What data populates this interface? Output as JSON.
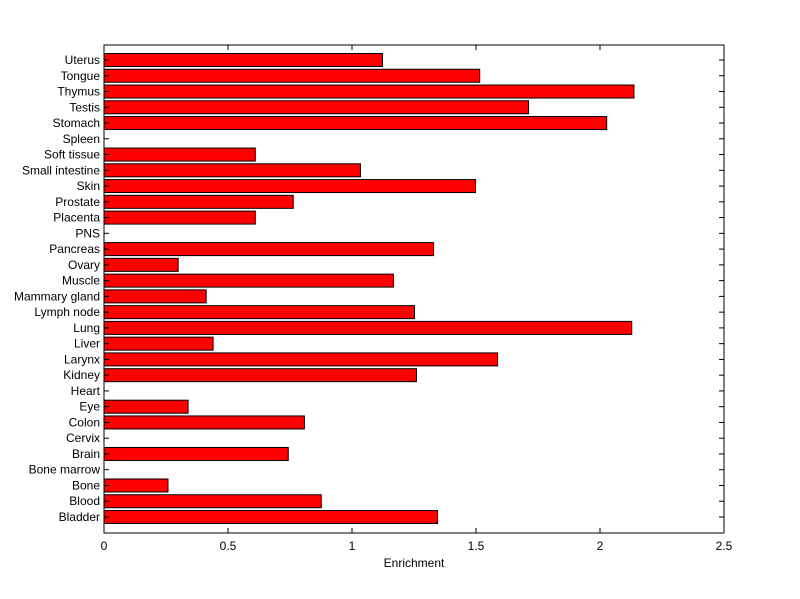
{
  "chart_data": {
    "type": "bar",
    "orientation": "horizontal",
    "title": "",
    "xlabel": "Enrichment",
    "ylabel": "",
    "xlim": [
      0,
      2.5
    ],
    "xticks": [
      "0",
      "0.5",
      "1",
      "1.5",
      "2",
      "2.5"
    ],
    "bar_color": "#ff0000",
    "categories": [
      "Bladder",
      "Blood",
      "Bone",
      "Bone marrow",
      "Brain",
      "Cervix",
      "Colon",
      "Eye",
      "Heart",
      "Kidney",
      "Larynx",
      "Liver",
      "Lung",
      "Lymph node",
      "Mammary gland",
      "Muscle",
      "Ovary",
      "Pancreas",
      "PNS",
      "Placenta",
      "Prostate",
      "Skin",
      "Small intestine",
      "Soft tissue",
      "Spleen",
      "Stomach",
      "Testis",
      "Thymus",
      "Tongue",
      "Uterus"
    ],
    "values": [
      1.345,
      0.876,
      0.258,
      0,
      0.743,
      0,
      0.808,
      0.339,
      0,
      1.26,
      1.587,
      0.44,
      2.128,
      1.252,
      0.412,
      1.167,
      0.299,
      1.329,
      0,
      0.61,
      0.763,
      1.498,
      1.034,
      0.61,
      0,
      2.027,
      1.712,
      2.137,
      1.515,
      1.123
    ]
  }
}
